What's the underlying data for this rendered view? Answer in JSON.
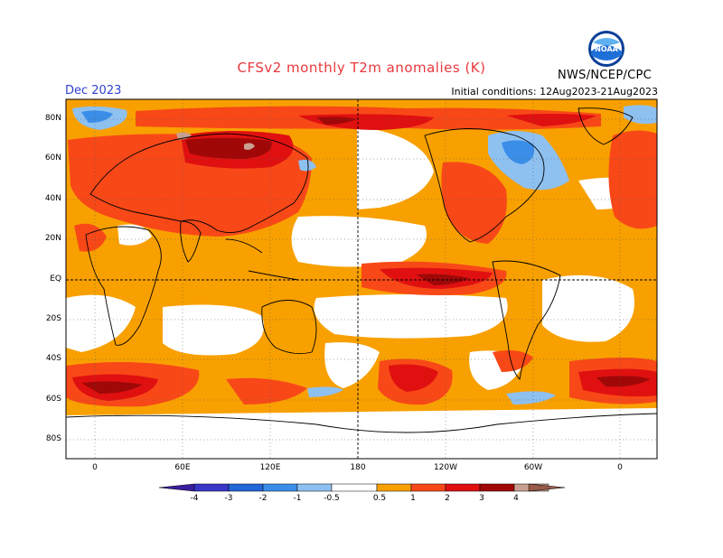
{
  "header": {
    "title": "CFSv2 monthly T2m anomalies (K)",
    "period": "Dec 2023",
    "initial_conditions": "Initial conditions: 12Aug2023-21Aug2023",
    "agency": "NWS/NCEP/CPC",
    "logo_text": "NOAA"
  },
  "axes": {
    "lat_labels": [
      "80N",
      "60N",
      "40N",
      "20N",
      "EQ",
      "20S",
      "40S",
      "60S",
      "80S"
    ],
    "lon_labels": [
      "0",
      "60E",
      "120E",
      "180",
      "120W",
      "60W",
      "0"
    ]
  },
  "colorbar": {
    "tick_labels": [
      "-4",
      "-3",
      "-2",
      "-1",
      "-0.5",
      "0.5",
      "1",
      "2",
      "3",
      "4"
    ],
    "colors": {
      "lt_-4": "#3a1e9e",
      "-4_-3": "#3a36c8",
      "-3_-2": "#2266d8",
      "-2_-1": "#3a8ee8",
      "-1_-0.5": "#8ec0f0",
      "neutral": "#ffffff",
      "0.5_1": "#f8a000",
      "1_2": "#f84818",
      "2_3": "#e01010",
      "3_4": "#a00808",
      "gt_4": "#c8a090",
      "gt_5": "#9a5a48"
    }
  }
}
